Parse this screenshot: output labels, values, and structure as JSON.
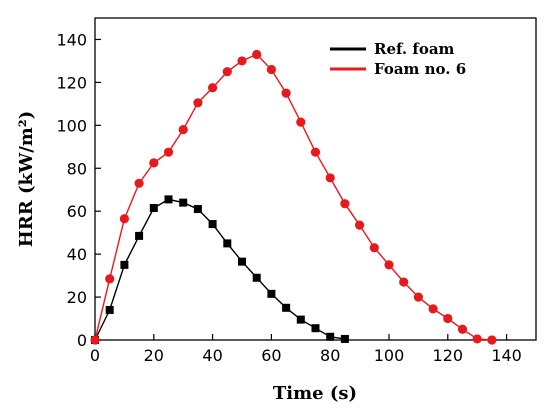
{
  "chart_data": {
    "type": "line",
    "xlabel": "Time (s)",
    "ylabel": "HRR (kW/m²)",
    "xlim": [
      0,
      150
    ],
    "ylim": [
      0,
      150
    ],
    "xticks": [
      0,
      20,
      40,
      60,
      80,
      100,
      120,
      140
    ],
    "yticks": [
      0,
      20,
      40,
      60,
      80,
      100,
      120,
      140
    ],
    "legend_position": "top-right",
    "grid": false,
    "series": [
      {
        "name": "Ref. foam",
        "color": "#000000",
        "marker": "square",
        "x": [
          0,
          5,
          10,
          15,
          20,
          25,
          30,
          35,
          40,
          45,
          50,
          55,
          60,
          65,
          70,
          75,
          80,
          85
        ],
        "y": [
          0,
          14,
          35,
          48.5,
          61.5,
          65.5,
          64,
          61,
          54,
          45,
          36.5,
          29,
          21.5,
          15,
          9.5,
          5.5,
          1.5,
          0.5
        ]
      },
      {
        "name": "Foam no. 6",
        "color": "#e8191d",
        "marker": "circle",
        "x": [
          0,
          5,
          10,
          15,
          20,
          25,
          30,
          35,
          40,
          45,
          50,
          55,
          60,
          65,
          70,
          75,
          80,
          85,
          90,
          95,
          100,
          105,
          110,
          115,
          120,
          125,
          130,
          135
        ],
        "y": [
          0,
          28.5,
          56.5,
          73,
          82.5,
          87.5,
          98,
          110.5,
          117.5,
          125,
          130,
          133,
          126,
          115,
          101.5,
          87.5,
          75.5,
          63.5,
          53.5,
          43,
          35,
          27,
          20,
          14.5,
          10,
          5,
          0.5,
          0
        ]
      }
    ]
  }
}
